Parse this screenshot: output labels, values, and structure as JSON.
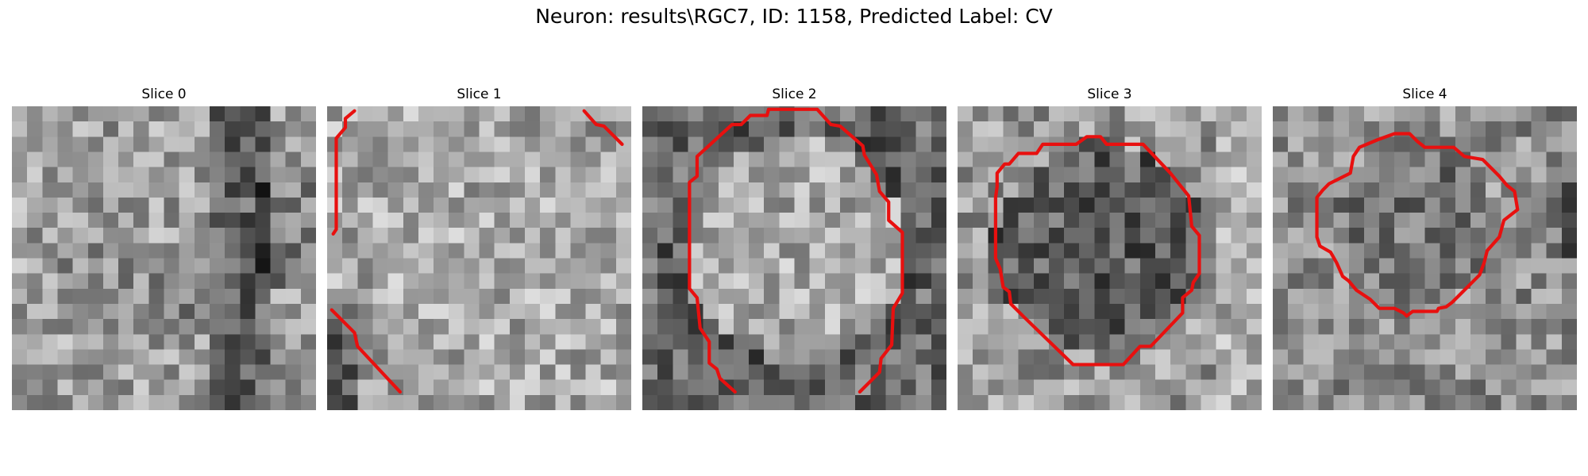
{
  "figure": {
    "title": "Neuron: results\\RGC7, ID: 1158, Predicted Label: CV"
  },
  "colors": {
    "contour": "#e8100f",
    "background": "#ffffff",
    "colormap": "gray"
  },
  "slices": [
    {
      "title": "Slice 0",
      "contours": []
    },
    {
      "title": "Slice 1",
      "contours": [
        [
          [
            0.4,
            8.4
          ],
          [
            0.6,
            8.1
          ],
          [
            0.6,
            2.1
          ],
          [
            1.2,
            1.4
          ],
          [
            1.2,
            0.8
          ],
          [
            1.8,
            0.3
          ]
        ],
        [
          [
            16.9,
            0.3
          ],
          [
            17.7,
            1.2
          ],
          [
            18.2,
            1.3
          ],
          [
            19.4,
            2.5
          ]
        ],
        [
          [
            0.3,
            13.4
          ],
          [
            1.8,
            14.9
          ],
          [
            2.0,
            15.8
          ],
          [
            4.8,
            18.8
          ]
        ]
      ]
    },
    {
      "title": "Slice 2",
      "contours": [
        [
          [
            6.1,
            18.8
          ],
          [
            5.1,
            17.9
          ],
          [
            4.9,
            17.3
          ],
          [
            4.4,
            16.9
          ],
          [
            4.4,
            15.5
          ],
          [
            3.8,
            14.6
          ],
          [
            3.6,
            12.6
          ],
          [
            3.1,
            12.0
          ],
          [
            3.1,
            5.0
          ],
          [
            3.6,
            4.6
          ],
          [
            3.6,
            3.3
          ],
          [
            5.9,
            1.2
          ],
          [
            6.5,
            1.2
          ],
          [
            7.1,
            0.6
          ],
          [
            8.2,
            0.6
          ],
          [
            8.3,
            0.2
          ],
          [
            11.5,
            0.2
          ],
          [
            12.4,
            1.2
          ],
          [
            13.0,
            1.3
          ],
          [
            14.5,
            2.6
          ],
          [
            14.6,
            3.2
          ],
          [
            15.4,
            4.5
          ],
          [
            15.6,
            5.6
          ],
          [
            16.2,
            6.3
          ],
          [
            16.2,
            7.5
          ],
          [
            17.1,
            8.3
          ],
          [
            17.1,
            12.3
          ],
          [
            16.5,
            13.3
          ],
          [
            16.4,
            15.7
          ],
          [
            15.7,
            16.6
          ],
          [
            15.6,
            17.5
          ],
          [
            14.3,
            18.8
          ]
        ]
      ]
    },
    {
      "title": "Slice 3",
      "contours": [
        [
          [
            7.6,
            17.0
          ],
          [
            10.9,
            17.0
          ],
          [
            12.0,
            15.8
          ],
          [
            12.7,
            15.8
          ],
          [
            14.8,
            13.6
          ],
          [
            14.8,
            12.6
          ],
          [
            15.4,
            12.1
          ],
          [
            15.5,
            11.6
          ],
          [
            15.9,
            11.0
          ],
          [
            15.9,
            8.5
          ],
          [
            15.4,
            7.9
          ],
          [
            15.2,
            5.9
          ],
          [
            14.0,
            4.4
          ],
          [
            12.2,
            2.5
          ],
          [
            9.8,
            2.5
          ],
          [
            9.4,
            2.0
          ],
          [
            8.5,
            2.0
          ],
          [
            7.8,
            2.5
          ],
          [
            5.6,
            2.5
          ],
          [
            5.2,
            3.1
          ],
          [
            4.0,
            3.1
          ],
          [
            3.4,
            3.8
          ],
          [
            3.1,
            3.8
          ],
          [
            2.6,
            4.4
          ],
          [
            2.6,
            5.3
          ],
          [
            2.5,
            6.0
          ],
          [
            2.5,
            10.0
          ],
          [
            2.8,
            10.7
          ],
          [
            3.0,
            11.9
          ],
          [
            3.4,
            12.2
          ],
          [
            3.5,
            13.0
          ],
          [
            4.4,
            13.9
          ],
          [
            7.6,
            17.0
          ]
        ]
      ]
    },
    {
      "title": "Slice 4",
      "contours": [
        [
          [
            5.7,
            2.7
          ],
          [
            6.9,
            2.2
          ],
          [
            8.0,
            1.8
          ],
          [
            9.0,
            1.8
          ],
          [
            9.5,
            2.3
          ],
          [
            10.0,
            2.7
          ],
          [
            11.9,
            2.7
          ],
          [
            12.6,
            3.3
          ],
          [
            13.8,
            3.5
          ],
          [
            14.9,
            4.6
          ],
          [
            15.4,
            5.2
          ],
          [
            15.9,
            5.6
          ],
          [
            16.1,
            6.8
          ],
          [
            15.2,
            7.5
          ],
          [
            14.9,
            8.6
          ],
          [
            14.1,
            9.5
          ],
          [
            13.9,
            10.3
          ],
          [
            13.6,
            11.1
          ],
          [
            12.6,
            12.1
          ],
          [
            11.8,
            12.9
          ],
          [
            11.4,
            13.2
          ],
          [
            10.9,
            13.3
          ],
          [
            10.8,
            13.5
          ],
          [
            9.2,
            13.5
          ],
          [
            8.8,
            13.8
          ],
          [
            8.6,
            13.6
          ],
          [
            8.0,
            13.3
          ],
          [
            7.0,
            13.3
          ],
          [
            6.4,
            12.7
          ],
          [
            5.5,
            12.1
          ],
          [
            5.0,
            11.5
          ],
          [
            4.6,
            11.2
          ],
          [
            4.2,
            10.3
          ],
          [
            3.8,
            9.6
          ],
          [
            3.1,
            9.2
          ],
          [
            2.9,
            8.6
          ],
          [
            2.9,
            6.0
          ],
          [
            3.3,
            5.5
          ],
          [
            3.7,
            5.1
          ],
          [
            5.1,
            4.4
          ],
          [
            5.3,
            3.3
          ],
          [
            5.7,
            2.7
          ]
        ]
      ]
    }
  ]
}
